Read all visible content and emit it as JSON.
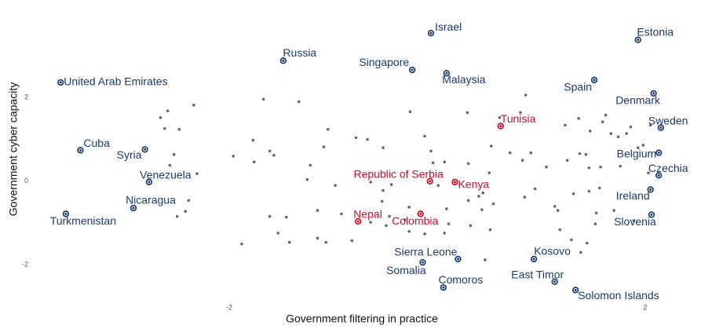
{
  "chart_data": {
    "type": "scatter",
    "x_label": "Government filtering in practice",
    "y_label": "Government cyber capacity",
    "xlim": [
      -3.75,
      2.4
    ],
    "ylim": [
      -2.8,
      4.2
    ],
    "xticks": [
      -2,
      2
    ],
    "yticks": [
      -2,
      0,
      2
    ],
    "grid": false,
    "series": [
      {
        "color": "#666666",
        "x": [
          -2.34,
          -2.59,
          -2.66,
          -2.62,
          -2.48,
          -2.53,
          -2.57,
          -2.31,
          -2.39,
          -2.42,
          -2.5,
          -1.96,
          -1.88,
          -1.67,
          -1.33,
          -1.77,
          -1.76,
          -1.61,
          -1.57,
          -1.61,
          -1.45,
          -1.53,
          -1.42,
          -1.25,
          -1.22,
          -1.15,
          -1.15,
          -1.09,
          -1.07,
          -1.05,
          -0.98,
          -0.92,
          -0.82,
          -0.78,
          -0.67,
          -0.52,
          -0.64,
          -0.52,
          -0.53,
          -0.64,
          -0.49,
          -0.44,
          -0.46,
          -0.31,
          -0.26,
          -0.27,
          -0.27,
          -0.12,
          -0.06,
          -0.04,
          -0.12,
          0.07,
          0.07,
          0.09,
          0.01,
          0.11,
          0.29,
          0.3,
          0.3,
          0.32,
          0.4,
          0.44,
          0.43,
          0.5,
          0.52,
          0.54,
          0.51,
          0.46,
          0.6,
          0.7,
          0.8,
          0.82,
          0.85,
          0.9,
          0.84,
          0.94,
          1.05,
          1.13,
          1.16,
          1.23,
          1.18,
          1.25,
          1.29,
          1.31,
          1.36,
          1.37,
          1.38,
          1.43,
          1.46,
          1.46,
          1.47,
          1.52,
          1.56,
          1.57,
          1.59,
          1.62,
          1.67,
          1.7,
          1.74,
          1.76,
          1.82,
          1.86,
          1.89,
          1.93,
          1.98,
          2.03,
          2.05,
          1.53,
          1.44
        ],
        "y": [
          1.82,
          1.68,
          1.52,
          1.26,
          1.24,
          0.64,
          0.38,
          0.18,
          -0.46,
          -0.72,
          -0.84,
          0.6,
          -1.5,
          1.96,
          1.9,
          0.98,
          0.46,
          0.72,
          0.62,
          -0.84,
          -0.86,
          -1.24,
          -1.46,
          0.04,
          0.38,
          -0.7,
          -1.36,
          0.82,
          -1.46,
          1.24,
          -0.1,
          -0.78,
          -1.42,
          1.04,
          1.0,
          0.8,
          -0.02,
          -0.22,
          -0.48,
          -0.98,
          -1.06,
          -0.08,
          -0.84,
          -0.92,
          1.66,
          -0.62,
          -1.2,
          1.08,
          0.72,
          0.44,
          -1.26,
          0.46,
          -1.24,
          -0.66,
          -0.1,
          -1.02,
          1.64,
          0.42,
          -0.46,
          -1.06,
          -0.36,
          -0.28,
          -0.68,
          0.2,
          0.84,
          -0.54,
          -1.16,
          -1.88,
          1.52,
          0.68,
          1.64,
          0.5,
          2.06,
          0.68,
          -0.38,
          -0.18,
          0.34,
          -0.6,
          -0.7,
          1.34,
          -1.16,
          0.5,
          -1.4,
          -0.3,
          1.5,
          0.66,
          -1.7,
          0.64,
          0.32,
          -0.24,
          1.2,
          -1.02,
          -0.16,
          0.34,
          1.42,
          1.58,
          1.14,
          -0.7,
          1.06,
          0.36,
          1.14,
          1.3,
          -0.94,
          0.8,
          0.86,
          0.2,
          1.34,
          -0.76,
          -1.48
        ]
      },
      {
        "color": "#1b3a6b",
        "labels": [
          "Israel",
          "Estonia",
          "Russia",
          "Singapore",
          "Malaysia",
          "United Arab Emirates",
          "Spain",
          "Denmark",
          "Sweden",
          "Cuba",
          "Syria",
          "Belgium",
          "Venezuela",
          "Czechia",
          "Ireland",
          "Nicaragua",
          "Turkmenistan",
          "Slovenia",
          "Sierra Leone",
          "Kosovo",
          "Somalia",
          "East Timor",
          "Comoros",
          "Solomon Islands"
        ],
        "x": [
          -0.06,
          1.93,
          -1.48,
          -0.24,
          0.09,
          -3.62,
          1.51,
          2.08,
          2.15,
          -3.43,
          -2.81,
          2.13,
          -2.77,
          2.13,
          2.05,
          -2.92,
          -3.57,
          2.06,
          0.2,
          0.93,
          -0.14,
          1.13,
          0.06,
          1.33
        ],
        "y": [
          3.54,
          3.38,
          2.88,
          2.66,
          2.58,
          2.36,
          2.42,
          2.1,
          1.28,
          0.74,
          0.76,
          0.68,
          -0.02,
          0.14,
          -0.2,
          -0.64,
          -0.78,
          -0.8,
          -1.86,
          -1.86,
          -1.94,
          -2.4,
          -2.54,
          -2.6
        ]
      },
      {
        "color": "#c8102e",
        "labels": [
          "Tunisia",
          "Republic of Serbia",
          "Kenya",
          "Nepal",
          "Colombia"
        ],
        "x": [
          0.61,
          -0.07,
          0.17,
          -0.76,
          -0.16
        ],
        "y": [
          1.32,
          0.0,
          -0.02,
          -0.96,
          -0.78
        ]
      }
    ]
  }
}
